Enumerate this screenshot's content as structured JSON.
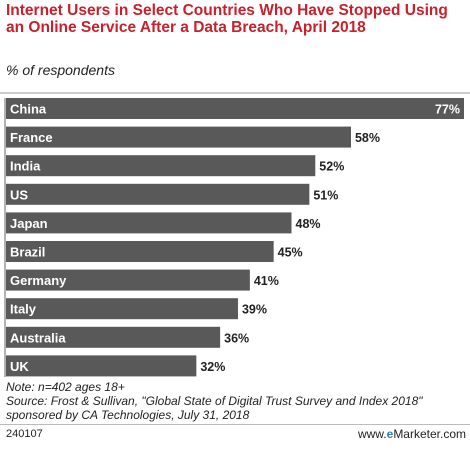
{
  "chart_data": {
    "type": "bar",
    "orientation": "horizontal",
    "title": "Internet Users in Select Countries Who Have Stopped Using an Online Service After a Data Breach, April 2018",
    "subtitle": "% of respondents",
    "categories": [
      "China",
      "France",
      "India",
      "US",
      "Japan",
      "Brazil",
      "Germany",
      "Italy",
      "Australia",
      "UK"
    ],
    "values": [
      77,
      58,
      52,
      51,
      48,
      45,
      41,
      39,
      36,
      32
    ],
    "value_labels": [
      "77%",
      "58%",
      "52%",
      "51%",
      "48%",
      "45%",
      "41%",
      "39%",
      "36%",
      "32%"
    ],
    "xlim": [
      0,
      77
    ],
    "grid": false,
    "bar_color": "#595959",
    "title_color": "#c8202c"
  },
  "note": "Note: n=402 ages 18+",
  "source": "Source: Frost & Sullivan, \"Global State of Digital Trust Survey and Index 2018\" sponsored by CA Technologies, July 31, 2018",
  "chart_id": "240107",
  "brand": {
    "prefix": "www.",
    "highlight": "e",
    "suffix": "Marketer.com"
  }
}
